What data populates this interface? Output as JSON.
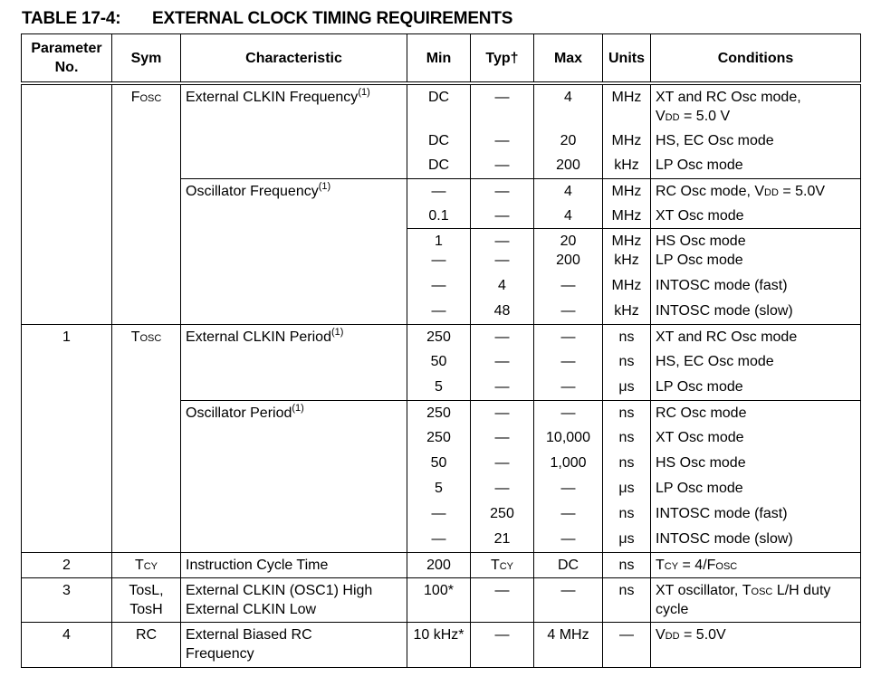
{
  "title": {
    "number": "TABLE 17-4:",
    "text": "EXTERNAL CLOCK TIMING REQUIREMENTS"
  },
  "headers": [
    "Parameter\nNo.",
    "Sym",
    "Characteristic",
    "Min",
    "Typ†",
    "Max",
    "Units",
    "Conditions"
  ],
  "fosc": {
    "sym": "Fosc",
    "ext_freq": {
      "label": "External CLKIN Frequency",
      "note": "(1)",
      "rows": [
        {
          "min": "DC",
          "typ": "—",
          "max": "4",
          "units": "MHz",
          "cond": "XT and RC Osc mode,",
          "cond2_sc": "Vdd",
          "cond2": " = 5.0 V"
        },
        {
          "min": "DC",
          "typ": "—",
          "max": "20",
          "units": "MHz",
          "cond": "HS, EC Osc mode"
        },
        {
          "min": "DC",
          "typ": "—",
          "max": "200",
          "units": "kHz",
          "cond": "LP Osc mode"
        }
      ]
    },
    "osc_freq": {
      "label": "Oscillator Frequency",
      "note": "(1)",
      "rows": [
        {
          "min": "—",
          "typ": "—",
          "max": "4",
          "units": "MHz",
          "cond": "RC Osc mode, ",
          "cond_sc": "Vdd",
          "cond_end": " = 5.0V"
        },
        {
          "min": "0.1",
          "typ": "—",
          "max": "4",
          "units": "MHz",
          "cond": "XT Osc mode"
        },
        {
          "min": "1\n—",
          "typ": "—\n—",
          "max": "20\n200",
          "units": "MHz\nkHz",
          "cond": "HS Osc mode\nLP Osc mode"
        },
        {
          "min": "—",
          "typ": "4",
          "max": "—",
          "units": "MHz",
          "cond": "INTOSC mode (fast)"
        },
        {
          "min": "—",
          "typ": "48",
          "max": "—",
          "units": "kHz",
          "cond": "INTOSC mode (slow)"
        }
      ]
    }
  },
  "tosc": {
    "param": "1",
    "sym": "Tosc",
    "ext_period": {
      "label": "External CLKIN Period",
      "note": "(1)",
      "rows": [
        {
          "min": "250",
          "typ": "—",
          "max": "—",
          "units": "ns",
          "cond": "XT and RC Osc mode"
        },
        {
          "min": "50",
          "typ": "—",
          "max": "—",
          "units": "ns",
          "cond": "HS, EC Osc mode"
        },
        {
          "min": "5",
          "typ": "—",
          "max": "—",
          "units": "μs",
          "cond": "LP Osc mode"
        }
      ]
    },
    "osc_period": {
      "label": "Oscillator Period",
      "note": "(1)",
      "rows": [
        {
          "min": "250",
          "typ": "—",
          "max": "—",
          "units": "ns",
          "cond": "RC Osc mode"
        },
        {
          "min": "250",
          "typ": "—",
          "max": "10,000",
          "units": "ns",
          "cond": "XT Osc mode"
        },
        {
          "min": "50",
          "typ": "—",
          "max": "1,000",
          "units": "ns",
          "cond": "HS Osc mode"
        },
        {
          "min": "5",
          "typ": "—",
          "max": "—",
          "units": "μs",
          "cond": "LP Osc mode"
        },
        {
          "min": "—",
          "typ": "250",
          "max": "—",
          "units": "ns",
          "cond": "INTOSC mode (fast)"
        },
        {
          "min": "—",
          "typ": "21",
          "max": "—",
          "units": "μs",
          "cond": "INTOSC mode (slow)"
        }
      ]
    }
  },
  "tcy": {
    "param": "2",
    "sym": "Tcy",
    "label": "Instruction Cycle Time",
    "min": "200",
    "typ": "Tcy",
    "max": "DC",
    "units": "ns",
    "cond_sc1": "Tcy",
    "cond_mid": " = 4/",
    "cond_sc2": "Fosc"
  },
  "tos": {
    "param": "3",
    "sym": "TosL,\nTosH",
    "label": "External CLKIN (OSC1) High\nExternal CLKIN Low",
    "min": "100*",
    "typ": "—",
    "max": "—",
    "units": "ns",
    "cond": "XT oscillator, ",
    "cond_sc": "Tosc",
    "cond_end": " L/H duty\ncycle"
  },
  "rc": {
    "param": "4",
    "sym": "RC",
    "label": "External Biased RC\nFrequency",
    "min": "10 kHz*",
    "typ": "—",
    "max": "4 MHz",
    "units": "—",
    "cond_sc": "Vdd",
    "cond_end": " = 5.0V"
  }
}
